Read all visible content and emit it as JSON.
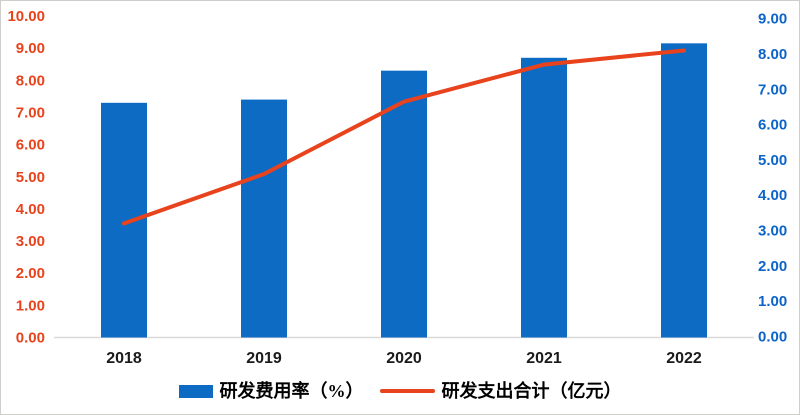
{
  "chart_data": {
    "type": "bar+line",
    "categories": [
      "2018",
      "2019",
      "2020",
      "2021",
      "2022"
    ],
    "series": [
      {
        "name": "研发费用率（%）",
        "type": "bar",
        "axis": "left",
        "values": [
          7.3,
          7.4,
          8.3,
          8.7,
          9.15
        ],
        "color": "#0d6bc4"
      },
      {
        "name": "研发支出合计（亿元）",
        "type": "line",
        "axis": "right",
        "values": [
          3.2,
          4.6,
          6.65,
          7.7,
          8.1
        ],
        "color": "#e8431c"
      }
    ],
    "left_axis": {
      "min": 0,
      "max": 10,
      "step": 1,
      "tick_format": "0.00",
      "label_color": "#e8431c"
    },
    "right_axis": {
      "min": 0,
      "max": 9,
      "step": 1,
      "tick_format": "0.00",
      "label_color": "#0c64c8"
    },
    "x_axis": {
      "label_color": "#1a1a1a",
      "line_color": "#d9d9d9"
    },
    "title": "",
    "xlabel": "",
    "ylabel": "",
    "grid": false,
    "legend_position": "bottom"
  }
}
